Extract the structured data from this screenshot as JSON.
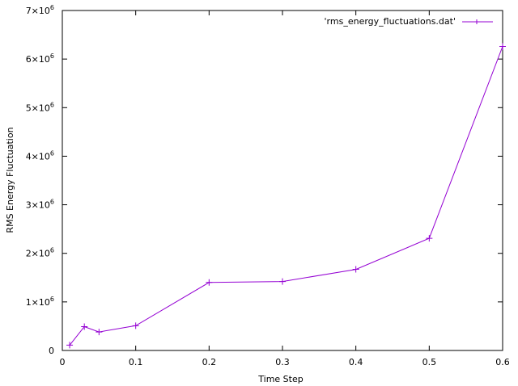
{
  "chart_data": {
    "type": "line",
    "xlabel": "Time Step",
    "ylabel": "RMS Energy Fluctuation",
    "xlim": [
      0,
      0.6
    ],
    "ylim": [
      0,
      7000000
    ],
    "x_ticks": [
      {
        "value": 0,
        "label": "0"
      },
      {
        "value": 0.1,
        "label": "0.1"
      },
      {
        "value": 0.2,
        "label": "0.2"
      },
      {
        "value": 0.3,
        "label": "0.3"
      },
      {
        "value": 0.4,
        "label": "0.4"
      },
      {
        "value": 0.5,
        "label": "0.5"
      },
      {
        "value": 0.6,
        "label": "0.6"
      }
    ],
    "y_ticks": [
      {
        "value": 0,
        "mantissa": "0",
        "exp": ""
      },
      {
        "value": 1000000,
        "mantissa": "1×10",
        "exp": "6"
      },
      {
        "value": 2000000,
        "mantissa": "2×10",
        "exp": "6"
      },
      {
        "value": 3000000,
        "mantissa": "3×10",
        "exp": "6"
      },
      {
        "value": 4000000,
        "mantissa": "4×10",
        "exp": "6"
      },
      {
        "value": 5000000,
        "mantissa": "5×10",
        "exp": "6"
      },
      {
        "value": 6000000,
        "mantissa": "6×10",
        "exp": "6"
      },
      {
        "value": 7000000,
        "mantissa": "7×10",
        "exp": "6"
      }
    ],
    "grid": false,
    "legend_position": "top-right",
    "series": [
      {
        "name": "'rms_energy_fluctuations.dat'",
        "color": "#9400d3",
        "marker": "plus",
        "x": [
          0.01,
          0.03,
          0.05,
          0.1,
          0.2,
          0.3,
          0.4,
          0.5,
          0.6
        ],
        "y": [
          110000,
          490000,
          380000,
          510000,
          1400000,
          1420000,
          1670000,
          2310000,
          6260000
        ]
      }
    ]
  }
}
